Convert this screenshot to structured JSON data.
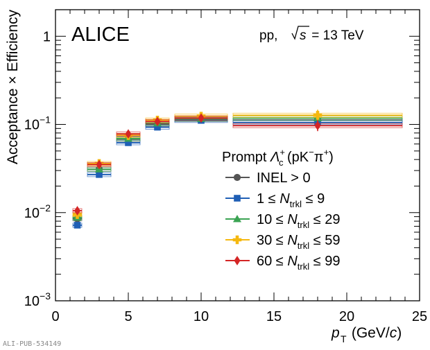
{
  "chart_data": {
    "type": "scatter",
    "experiment_label": "ALICE",
    "energy_label": {
      "prefix": "pp, ",
      "root_symbol": "s",
      "suffix": " = 13 TeV"
    },
    "xlabel": {
      "var": "p",
      "sub": "T",
      "unit_open": " (GeV/",
      "unit_c": "c",
      "unit_close": ")"
    },
    "ylabel": "Acceptance × Efficiency",
    "xlim": [
      0,
      25
    ],
    "ylim": [
      0.001,
      2
    ],
    "yscale": "log",
    "x_ticks": [
      "0",
      "5",
      "10",
      "15",
      "20",
      "25"
    ],
    "x_tick_values": [
      0,
      5,
      10,
      15,
      20,
      25
    ],
    "y_ticks": [
      {
        "value": 0.001,
        "base": "10",
        "exp": "−3"
      },
      {
        "value": 0.01,
        "base": "10",
        "exp": "−2"
      },
      {
        "value": 0.1,
        "base": "10",
        "exp": "−1"
      },
      {
        "value": 1,
        "base": "1",
        "exp": ""
      }
    ],
    "legend_placement": "right",
    "legend_title": {
      "prefix": "Prompt ",
      "particle": "Λ",
      "sup": "+",
      "sub": "c",
      "decay": " (pK",
      "decay_sup1": "−",
      "decay_mid": "π",
      "decay_sup2": "+",
      "decay_close": ")"
    },
    "bins": [
      [
        1,
        2
      ],
      [
        2,
        4
      ],
      [
        4,
        6
      ],
      [
        6,
        8
      ],
      [
        8,
        12
      ],
      [
        12,
        24
      ]
    ],
    "x": [
      1.5,
      3,
      5,
      7,
      10,
      18
    ],
    "series": [
      {
        "legend": {
          "pre": "INEL > 0",
          "mid": "",
          "post": ""
        },
        "color": "#555555",
        "marker": "circle",
        "values": [
          0.0085,
          0.031,
          0.068,
          0.101,
          0.114,
          0.112
        ]
      },
      {
        "legend": {
          "pre": "  1 ≤ ",
          "mid": "N",
          "sub": "trkl",
          "post": " ≤   9"
        },
        "color": "#1f5fb5",
        "marker": "square",
        "values": [
          0.0072,
          0.027,
          0.062,
          0.093,
          0.111,
          0.105
        ]
      },
      {
        "legend": {
          "pre": "10 ≤ ",
          "mid": "N",
          "sub": "trkl",
          "post": " ≤ 29"
        },
        "color": "#3aa352",
        "marker": "triangle",
        "values": [
          0.0088,
          0.031,
          0.069,
          0.103,
          0.116,
          0.118
        ]
      },
      {
        "legend": {
          "pre": "30 ≤ ",
          "mid": "N",
          "sub": "trkl",
          "post": " ≤ 59"
        },
        "color": "#f5b80f",
        "marker": "cross",
        "values": [
          0.0095,
          0.036,
          0.075,
          0.112,
          0.124,
          0.127
        ]
      },
      {
        "legend": {
          "pre": "60 ≤ ",
          "mid": "N",
          "sub": "trkl",
          "post": " ≤ 99"
        },
        "color": "#d42525",
        "marker": "diamond",
        "values": [
          0.0105,
          0.035,
          0.078,
          0.108,
          0.118,
          0.097
        ]
      }
    ],
    "watermark": "ALI-PUB-534149"
  }
}
